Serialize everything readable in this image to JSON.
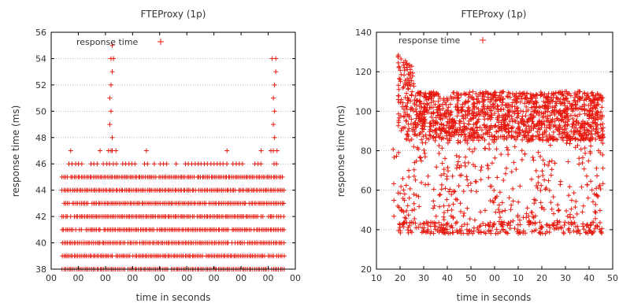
{
  "chart_data": [
    {
      "type": "scatter",
      "title": "FTEProxy (1p)",
      "xlabel": "time in seconds",
      "ylabel": "response time (ms)",
      "ylim": [
        38,
        56
      ],
      "yticks": [
        "38",
        "40",
        "42",
        "44",
        "46",
        "48",
        "50",
        "52",
        "54",
        "56"
      ],
      "xticks": [
        "00",
        "00",
        "00",
        "00",
        "00",
        "00",
        "00",
        "00",
        "00",
        "00"
      ],
      "grid": true,
      "legend_position": "top-left",
      "color": "#e8190f",
      "marker": "+",
      "series": [
        {
          "name": "response time",
          "dense_bands": [
            {
              "y": 38,
              "x_range": [
                0.045,
                0.96
              ]
            },
            {
              "y": 39,
              "x_range": [
                0.045,
                0.96
              ]
            },
            {
              "y": 40,
              "x_range": [
                0.045,
                0.96
              ]
            },
            {
              "y": 41,
              "x_range": [
                0.045,
                0.96
              ]
            },
            {
              "y": 42,
              "x_range": [
                0.045,
                0.96
              ]
            },
            {
              "y": 43,
              "x_range": [
                0.045,
                0.96
              ]
            },
            {
              "y": 44,
              "x_range": [
                0.045,
                0.96
              ]
            },
            {
              "y": 45,
              "x_range": [
                0.045,
                0.96
              ]
            },
            {
              "y": 46,
              "x_range": [
                0.06,
                0.95
              ]
            }
          ],
          "outliers": [
            {
              "x": 0.25,
              "y": 55
            },
            {
              "x": 0.245,
              "y": 54
            },
            {
              "x": 0.255,
              "y": 54
            },
            {
              "x": 0.25,
              "y": 53
            },
            {
              "x": 0.245,
              "y": 52
            },
            {
              "x": 0.24,
              "y": 51
            },
            {
              "x": 0.245,
              "y": 50
            },
            {
              "x": 0.24,
              "y": 49
            },
            {
              "x": 0.25,
              "y": 48
            },
            {
              "x": 0.25,
              "y": 47
            },
            {
              "x": 0.245,
              "y": 47
            },
            {
              "x": 0.235,
              "y": 47
            },
            {
              "x": 0.265,
              "y": 47
            },
            {
              "x": 0.2,
              "y": 47
            },
            {
              "x": 0.39,
              "y": 47
            },
            {
              "x": 0.08,
              "y": 47
            },
            {
              "x": 0.72,
              "y": 47
            },
            {
              "x": 0.905,
              "y": 54
            },
            {
              "x": 0.92,
              "y": 54
            },
            {
              "x": 0.92,
              "y": 53
            },
            {
              "x": 0.915,
              "y": 52
            },
            {
              "x": 0.91,
              "y": 51
            },
            {
              "x": 0.915,
              "y": 50
            },
            {
              "x": 0.91,
              "y": 49
            },
            {
              "x": 0.915,
              "y": 48
            },
            {
              "x": 0.9,
              "y": 47
            },
            {
              "x": 0.91,
              "y": 47
            },
            {
              "x": 0.925,
              "y": 47
            },
            {
              "x": 0.86,
              "y": 47
            }
          ]
        }
      ]
    },
    {
      "type": "scatter",
      "title": "FTEProxy (1p)",
      "xlabel": "time in seconds",
      "ylabel": "response time (ms)",
      "ylim": [
        20,
        140
      ],
      "yticks": [
        "20",
        "40",
        "60",
        "80",
        "100",
        "120",
        "140"
      ],
      "xticks": [
        "10",
        "20",
        "30",
        "40",
        "50",
        "00",
        "10",
        "20",
        "30",
        "40",
        "50"
      ],
      "grid": true,
      "legend_position": "top-left",
      "color": "#e8190f",
      "marker": "+",
      "series": [
        {
          "name": "response time",
          "dense_region": {
            "x_range": [
              0.09,
              0.96
            ],
            "y_core": [
              85,
              110
            ],
            "y_upper_early": 130
          },
          "sparse_region": {
            "x_range": [
              0.07,
              0.96
            ],
            "y_range": [
              38,
              85
            ],
            "baseline_y": 41
          }
        }
      ]
    }
  ]
}
